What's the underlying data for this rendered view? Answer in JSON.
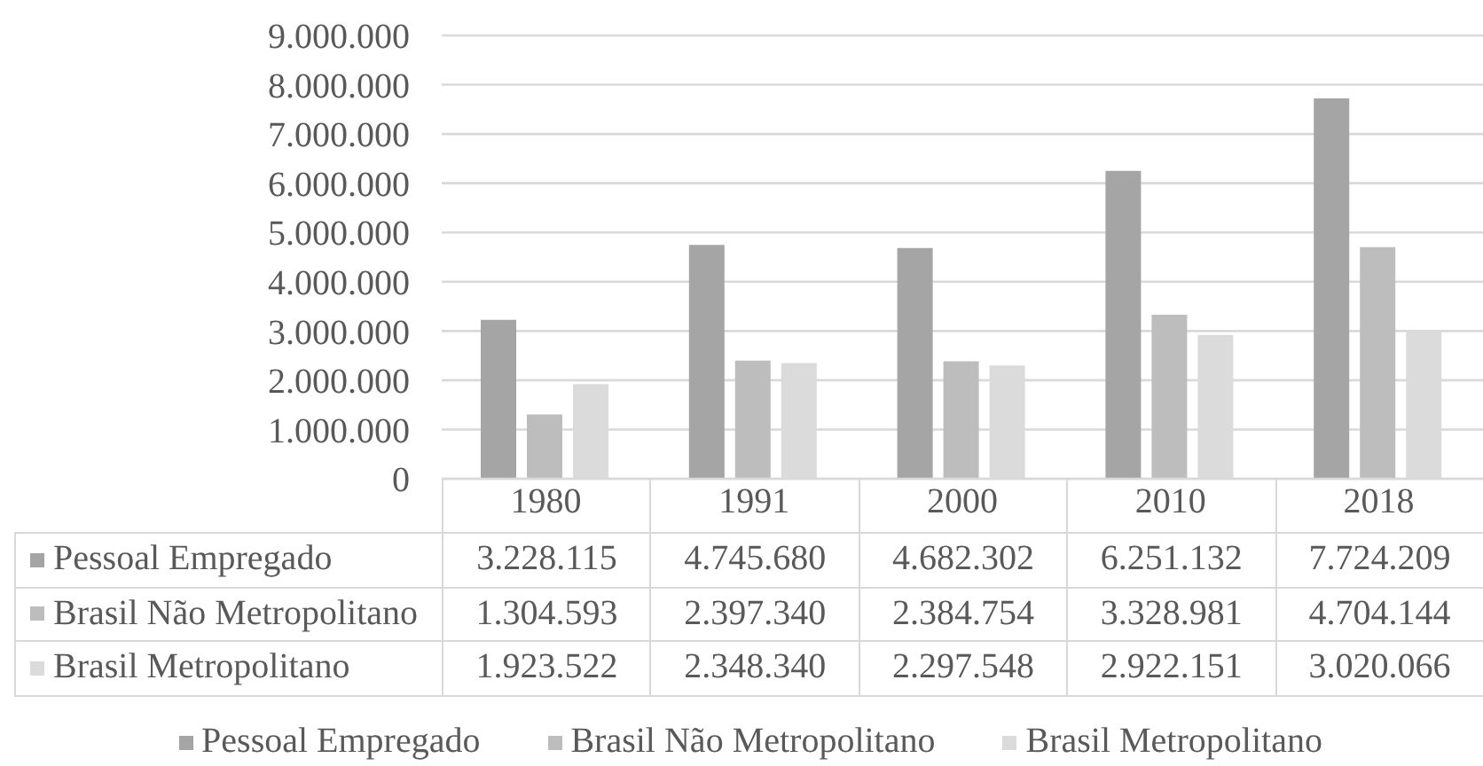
{
  "chart_data": {
    "type": "bar",
    "categories": [
      "1980",
      "1991",
      "2000",
      "2010",
      "2018"
    ],
    "series": [
      {
        "name": "Pessoal Empregado",
        "color": "#a5a5a5",
        "values": [
          3228115,
          4745680,
          4682302,
          6251132,
          7724209
        ],
        "value_labels": [
          "3.228.115",
          "4.745.680",
          "4.682.302",
          "6.251.132",
          "7.724.209"
        ]
      },
      {
        "name": "Brasil Não Metropolitano",
        "color": "#bdbdbd",
        "values": [
          1304593,
          2397340,
          2384754,
          3328981,
          4704144
        ],
        "value_labels": [
          "1.304.593",
          "2.397.340",
          "2.384.754",
          "3.328.981",
          "4.704.144"
        ]
      },
      {
        "name": "Brasil Metropolitano",
        "color": "#dbdbdb",
        "values": [
          1923522,
          2348340,
          2297548,
          2922151,
          3020066
        ],
        "value_labels": [
          "1.923.522",
          "2.348.340",
          "2.297.548",
          "2.922.151",
          "3.020.066"
        ]
      }
    ],
    "ylim": [
      0,
      9000000
    ],
    "yticks": [
      0,
      {
        "value": 1000000,
        "label": "1.000.000"
      },
      {
        "value": 2000000,
        "label": "2.000.000"
      },
      {
        "value": 3000000,
        "label": "3.000.000"
      },
      {
        "value": 4000000,
        "label": "4.000.000"
      },
      {
        "value": 5000000,
        "label": "5.000.000"
      },
      {
        "value": 6000000,
        "label": "6.000.000"
      },
      {
        "value": 7000000,
        "label": "7.000.000"
      },
      {
        "value": 8000000,
        "label": "8.000.000"
      },
      {
        "value": 9000000,
        "label": "9.000.000"
      }
    ],
    "grid": "y",
    "legend": "bottom"
  }
}
